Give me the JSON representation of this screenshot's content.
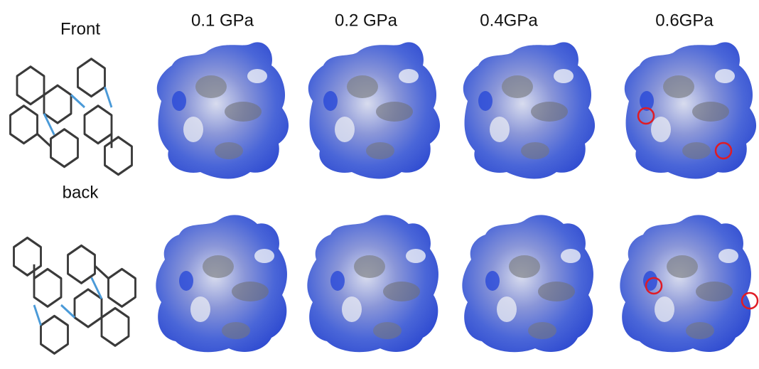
{
  "figure": {
    "row_labels": [
      "Front",
      "back"
    ],
    "column_labels": [
      "0.1 GPa",
      "0.2 GPa",
      "0.4GPa",
      "0.6GPa"
    ]
  }
}
